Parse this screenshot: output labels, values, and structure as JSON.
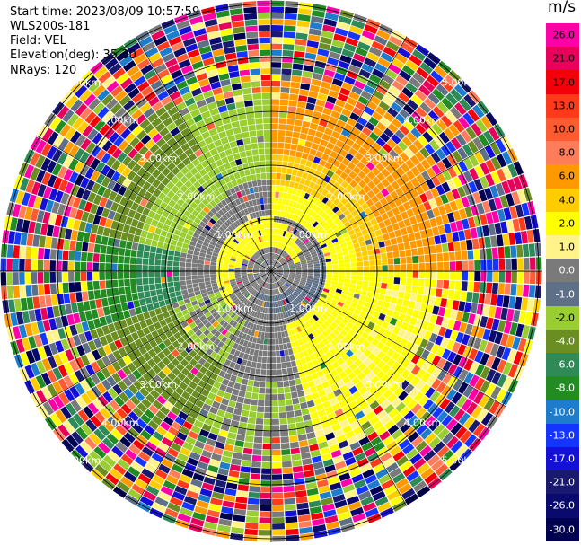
{
  "header": {
    "start_time": "Start time: 2023/08/09 10:57:59",
    "instrument": "WLS200s-181",
    "field": "Field: VEL",
    "elevation": "Elevation(deg): 35.30",
    "nrays": "NRays: 120"
  },
  "colorbar": {
    "unit": "m/s",
    "labels": [
      "26.0",
      "21.0",
      "17.0",
      "13.0",
      "10.0",
      "8.0",
      "6.0",
      "4.0",
      "2.0",
      "1.0",
      "0.0",
      "-1.0",
      "-2.0",
      "-4.0",
      "-6.0",
      "-8.0",
      "-10.0",
      "-13.0",
      "-17.0",
      "-21.0",
      "-26.0",
      "-30.0"
    ],
    "colors": [
      "#ff00a8",
      "#e8005a",
      "#f5000a",
      "#ff3a1a",
      "#ff5a30",
      "#ff7d5a",
      "#ff9900",
      "#ffcc00",
      "#ffff00",
      "#fff38a",
      "#7a7a7a",
      "#5e6f88",
      "#9acd32",
      "#6b8e23",
      "#2e8b57",
      "#228b22",
      "#1e7ccc",
      "#1434ff",
      "#1410d8",
      "#191970",
      "#0a0a6e",
      "#000050"
    ]
  },
  "chart_data": {
    "type": "ppi",
    "field": "VEL",
    "nrays": 120,
    "elevation_deg": 35.3,
    "range_ring_labels": [
      "1.00km",
      "2.00km",
      "3.00km",
      "4.00km",
      "5.00km"
    ],
    "velocity_zones": [
      {
        "region": "north-east",
        "velocity_range": "2.0 to 6.0",
        "color": "orange/yellow"
      },
      {
        "region": "east",
        "velocity_range": "1.0 to 4.0",
        "color": "yellow"
      },
      {
        "region": "north-west",
        "velocity_range": "-2.0 to -4.0",
        "color": "yellow-green"
      },
      {
        "region": "south-west",
        "velocity_range": "-4.0 to -8.0",
        "color": "green"
      },
      {
        "region": "center",
        "velocity_range": "-1.0 to 1.0",
        "color": "gray"
      }
    ],
    "outer_noise": "random velocities beyond ~4.5 km",
    "grid": true
  }
}
